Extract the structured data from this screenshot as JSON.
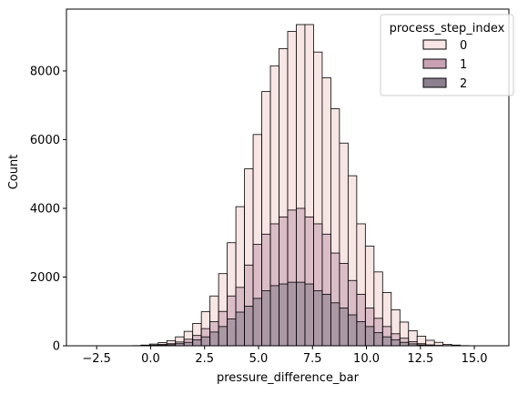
{
  "chart_data": {
    "type": "histogram",
    "xlabel": "pressure_difference_bar",
    "ylabel": "Count",
    "xlim": [
      -3.9,
      16.6
    ],
    "ylim": [
      0,
      9800
    ],
    "bin_start": -3.25,
    "bin_width": 0.4,
    "x_ticks": [
      -2.5,
      0.0,
      2.5,
      5.0,
      7.5,
      10.0,
      12.5,
      15.0
    ],
    "x_tick_labels": [
      "−2.5",
      "0.0",
      "2.5",
      "5.0",
      "7.5",
      "10.0",
      "12.5",
      "15.0"
    ],
    "y_ticks": [
      0,
      2000,
      4000,
      6000,
      8000
    ],
    "y_tick_labels": [
      "0",
      "2000",
      "4000",
      "6000",
      "8000"
    ],
    "grid": false,
    "legend": {
      "title": "process_step_index",
      "placement": "top-right",
      "entries": [
        "0",
        "1",
        "2"
      ]
    },
    "series": [
      {
        "name": "0",
        "color": "#f7e6e4",
        "values": [
          0,
          0,
          0,
          0,
          0,
          0,
          5,
          20,
          50,
          90,
          150,
          260,
          420,
          650,
          990,
          1450,
          2100,
          3000,
          4050,
          5150,
          6150,
          7400,
          8150,
          8650,
          9150,
          9350,
          9350,
          8550,
          7800,
          6900,
          5900,
          4950,
          3550,
          2900,
          2150,
          1550,
          1050,
          690,
          440,
          280,
          160,
          100,
          40,
          20,
          5,
          0,
          0,
          0
        ]
      },
      {
        "name": "1",
        "color": "#c8a2b4",
        "values": [
          0,
          0,
          0,
          0,
          0,
          0,
          0,
          5,
          20,
          40,
          60,
          110,
          190,
          300,
          500,
          700,
          1000,
          1450,
          1700,
          2350,
          2950,
          3250,
          3550,
          3750,
          3950,
          4000,
          3750,
          3550,
          3250,
          2700,
          2400,
          1900,
          1500,
          1100,
          800,
          560,
          350,
          220,
          120,
          60,
          25,
          10,
          5,
          0,
          0,
          0,
          0,
          0
        ]
      },
      {
        "name": "2",
        "color": "#8c7f8e",
        "values": [
          0,
          0,
          0,
          0,
          0,
          0,
          0,
          0,
          5,
          15,
          30,
          60,
          100,
          170,
          260,
          400,
          560,
          780,
          980,
          1150,
          1380,
          1600,
          1750,
          1800,
          1850,
          1850,
          1800,
          1600,
          1500,
          1250,
          1100,
          900,
          700,
          560,
          380,
          260,
          170,
          100,
          55,
          25,
          10,
          5,
          0,
          0,
          0,
          0,
          0,
          0
        ]
      }
    ]
  }
}
